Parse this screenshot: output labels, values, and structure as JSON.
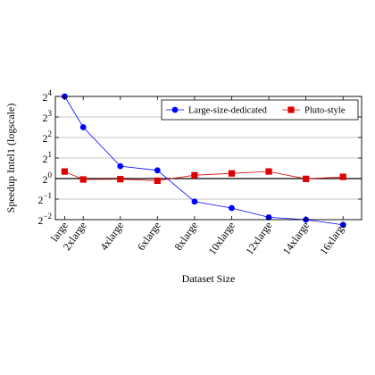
{
  "chart_data": {
    "type": "line",
    "categories": [
      "large",
      "2xlarge",
      "4xlarge",
      "6xlarge",
      "8xlarge",
      "10xlarge",
      "12xlarge",
      "14xlarge",
      "16xlarge"
    ],
    "x": [
      1,
      2,
      4,
      6,
      8,
      10,
      12,
      14,
      16
    ],
    "xlabel": "Dataset Size",
    "ylabel": "Speedup Intel1 (logscale)",
    "yscale": "log2",
    "ylim_exponent": [
      -2,
      4
    ],
    "yticks": [
      {
        "base": "2",
        "exp": "4"
      },
      {
        "base": "2",
        "exp": "3"
      },
      {
        "base": "2",
        "exp": "2"
      },
      {
        "base": "2",
        "exp": "1"
      },
      {
        "base": "2",
        "exp": "0"
      },
      {
        "base": "2",
        "exp": "−1"
      },
      {
        "base": "2",
        "exp": "−2"
      }
    ],
    "grid": "horizontal",
    "legend_position": "top-right",
    "series": [
      {
        "name": "Large-size-dedicated",
        "color": "#0000ff",
        "marker": "circle",
        "values": [
          16.0,
          5.66,
          1.52,
          1.32,
          0.46,
          0.37,
          0.27,
          0.25,
          0.21
        ]
      },
      {
        "name": "Pluto-style",
        "color": "#dd0000",
        "marker": "square",
        "values": [
          1.27,
          0.97,
          0.98,
          0.93,
          1.12,
          1.19,
          1.27,
          0.99,
          1.06
        ]
      }
    ]
  }
}
